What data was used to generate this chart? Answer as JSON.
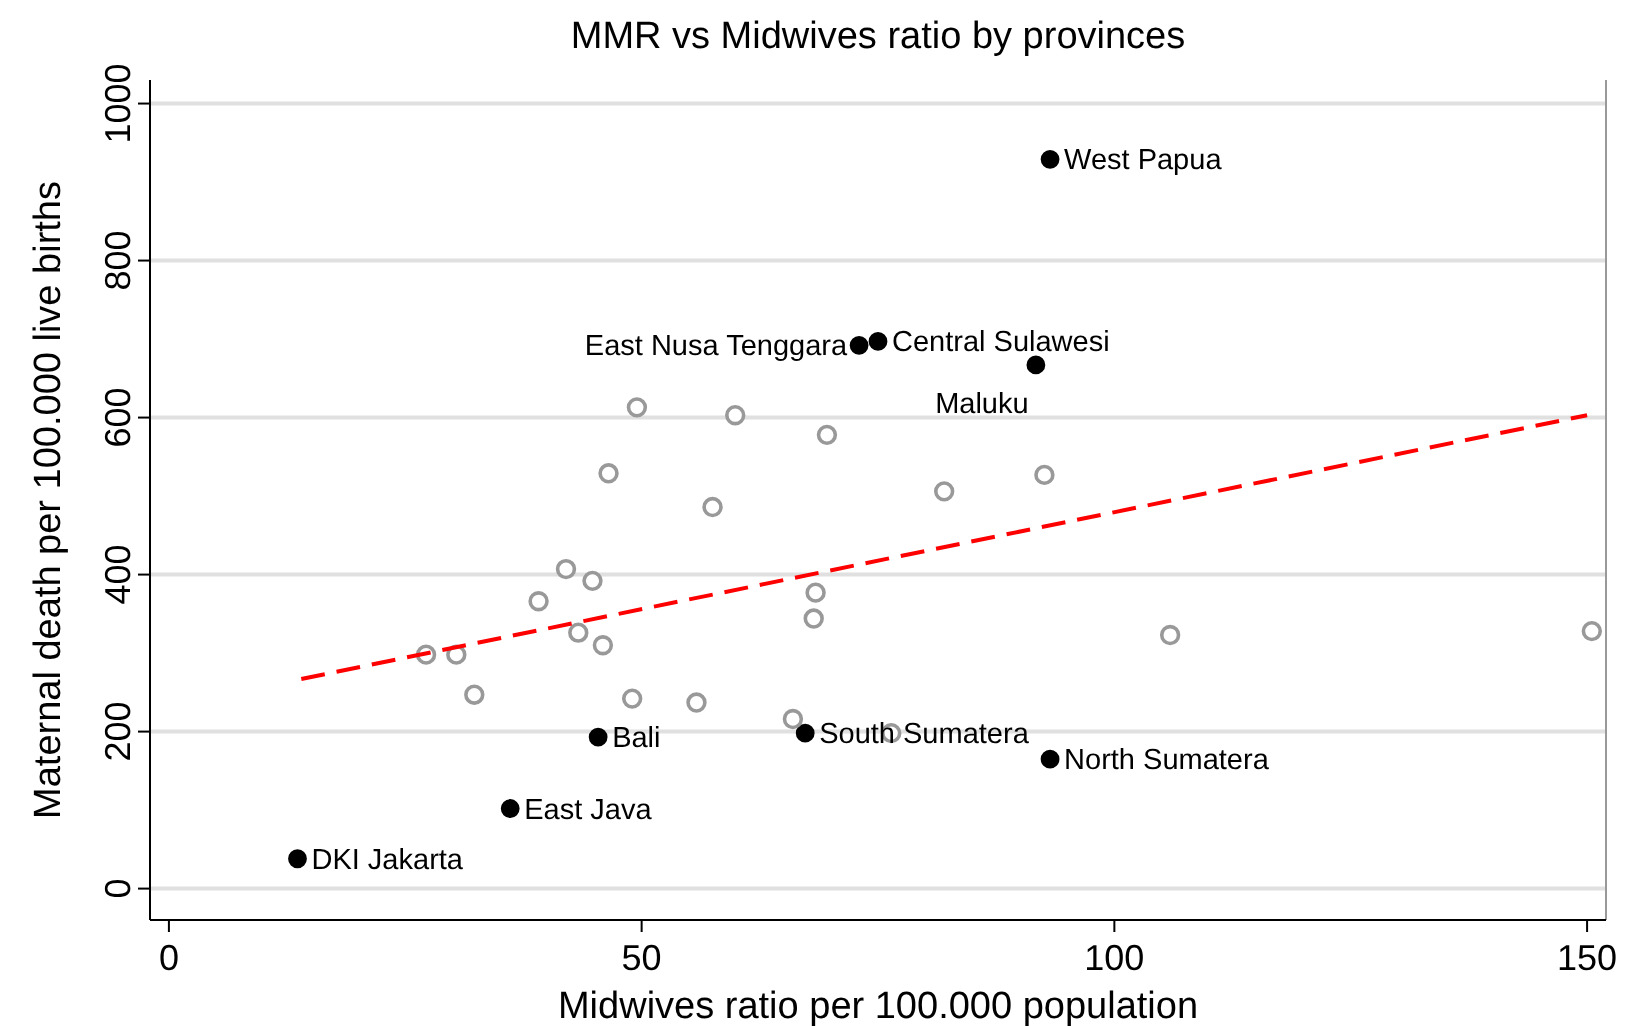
{
  "chart_data": {
    "type": "scatter",
    "title": "MMR vs Midwives ratio by provinces",
    "xlabel": "Midwives ratio per 100.000 population",
    "ylabel": "Maternal death per 100.000 live births",
    "xlim": [
      -2,
      152
    ],
    "ylim": [
      -40,
      1030
    ],
    "xticks": [
      0,
      50,
      100,
      150
    ],
    "yticks": [
      0,
      200,
      400,
      600,
      800,
      1000
    ],
    "grid": "y",
    "series": [
      {
        "color": "#000000",
        "marker": "circle",
        "x": [
          93.2,
          73.0,
          75.0,
          91.7,
          45.4,
          67.3,
          93.2,
          36.1,
          13.6
        ],
        "values": [
          929,
          692,
          697,
          667,
          193,
          198,
          165,
          102,
          38
        ]
      },
      {
        "color": "#999999",
        "marker": "circle",
        "x": [
          49.5,
          59.9,
          69.6,
          46.5,
          57.5,
          82.0,
          92.6,
          42.0,
          44.8,
          39.1,
          68.4,
          68.2,
          43.3,
          45.9,
          27.2,
          30.4,
          32.3,
          49.0,
          55.8,
          66.0,
          76.4,
          105.9,
          150.5
        ],
        "values": [
          613,
          603,
          578,
          529,
          486,
          506,
          527,
          407,
          392,
          366,
          377,
          344,
          326,
          310,
          298,
          298,
          247,
          242,
          237,
          216,
          198,
          323,
          328
        ]
      },
      {
        "type": "line",
        "color": "#ff0000",
        "line_style": "dashed",
        "marker": "none",
        "x": [
          14,
          150
        ],
        "values": [
          267,
          603
        ]
      }
    ],
    "annotations": [
      {
        "text": "West Papua",
        "x": 93.2,
        "y": 929
      },
      {
        "text": "East Nusa Tenggara",
        "x": 73.0,
        "y": 692
      },
      {
        "text": "Central Sulawesi",
        "x": 75.0,
        "y": 697
      },
      {
        "text": "Maluku",
        "x": 91.7,
        "y": 667
      },
      {
        "text": "Bali",
        "x": 45.4,
        "y": 193
      },
      {
        "text": "South Sumatera",
        "x": 67.3,
        "y": 198
      },
      {
        "text": "North Sumatera",
        "x": 93.2,
        "y": 165
      },
      {
        "text": "East Java",
        "x": 36.1,
        "y": 102
      },
      {
        "text": "DKI Jakarta",
        "x": 13.6,
        "y": 38
      }
    ]
  }
}
